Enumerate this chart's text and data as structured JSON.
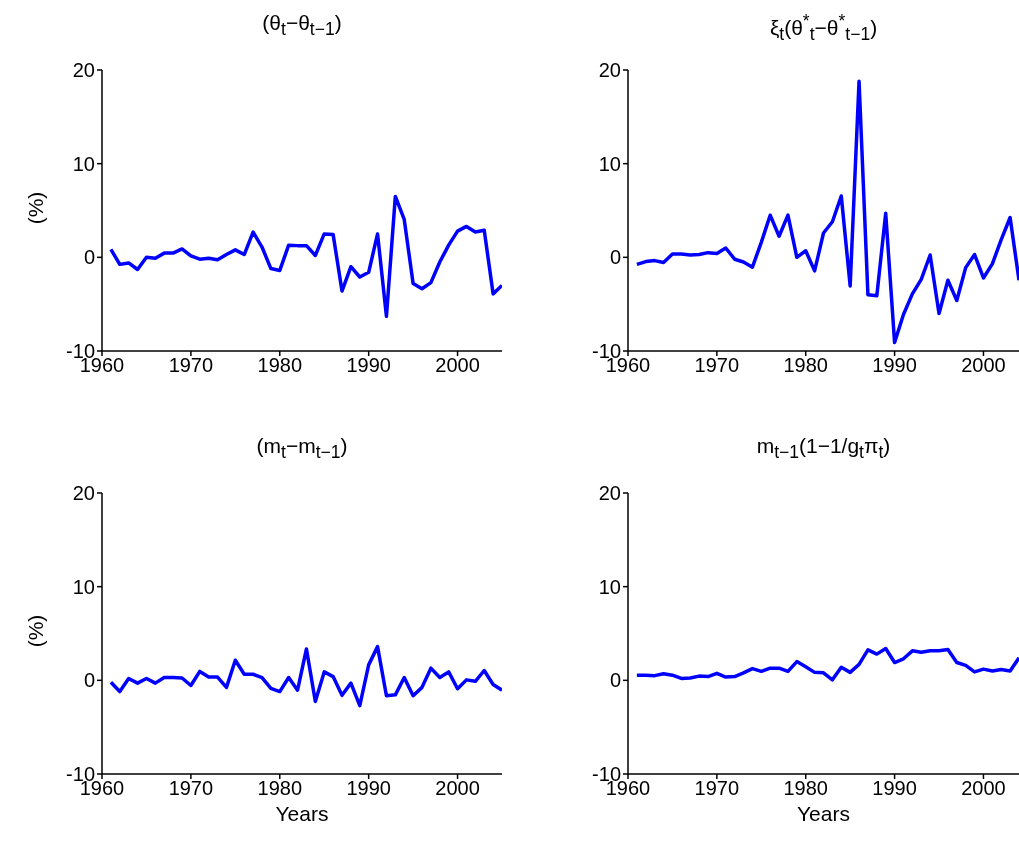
{
  "chart_data": [
    {
      "type": "line",
      "title": "(θ$_{t}$−θ$_{t−1}$)",
      "ylabel": "(%)",
      "color": "#0000ff",
      "xlim": [
        1960,
        2005
      ],
      "xticks": [
        1960,
        1970,
        1980,
        1990,
        2000
      ],
      "ylim": [
        -10,
        20
      ],
      "yticks": [
        -10,
        0,
        10,
        20
      ],
      "x": [
        1961,
        1962,
        1963,
        1964,
        1965,
        1966,
        1967,
        1968,
        1969,
        1970,
        1971,
        1972,
        1973,
        1974,
        1975,
        1976,
        1977,
        1978,
        1979,
        1980,
        1981,
        1982,
        1983,
        1984,
        1985,
        1986,
        1987,
        1988,
        1989,
        1990,
        1991,
        1992,
        1993,
        1994,
        1995,
        1996,
        1997,
        1998,
        1999,
        2000,
        2001,
        2002,
        2003,
        2004,
        2005
      ],
      "values": [
        0.85,
        -0.75,
        -0.6,
        -1.3,
        0,
        -0.1,
        0.45,
        0.45,
        0.9,
        0.15,
        -0.2,
        -0.1,
        -0.25,
        0.3,
        0.8,
        0.3,
        2.7,
        1.1,
        -1.2,
        -1.4,
        1.3,
        1.25,
        1.25,
        0.2,
        2.5,
        2.45,
        -3.6,
        -1.0,
        -2.1,
        -1.6,
        2.5,
        -6.3,
        6.5,
        4.05,
        -2.8,
        -3.35,
        -2.7,
        -0.5,
        1.3,
        2.8,
        3.3,
        2.7,
        2.9,
        -3.9,
        -3.0
      ]
    },
    {
      "type": "line",
      "title": "ξ$_{t}$(θ$^{*}$$_{t}$−θ$^{*}$$_{t−1}$)",
      "color": "#0000ff",
      "xlim": [
        1960,
        2004
      ],
      "xticks": [
        1960,
        1970,
        1980,
        1990,
        2000
      ],
      "ylim": [
        -10,
        20
      ],
      "yticks": [
        -10,
        0,
        10,
        20
      ],
      "x": [
        1961,
        1962,
        1963,
        1964,
        1965,
        1966,
        1967,
        1968,
        1969,
        1970,
        1971,
        1972,
        1973,
        1974,
        1975,
        1976,
        1977,
        1978,
        1979,
        1980,
        1981,
        1982,
        1983,
        1984,
        1985,
        1986,
        1987,
        1988,
        1989,
        1990,
        1991,
        1992,
        1993,
        1994,
        1995,
        1996,
        1997,
        1998,
        1999,
        2000,
        2001,
        2002,
        2003,
        2004
      ],
      "values": [
        -0.75,
        -0.45,
        -0.35,
        -0.55,
        0.35,
        0.35,
        0.25,
        0.3,
        0.5,
        0.4,
        1.0,
        -0.2,
        -0.5,
        -1.05,
        1.6,
        4.5,
        2.25,
        4.5,
        0,
        0.7,
        -1.45,
        2.6,
        3.8,
        6.55,
        -3.05,
        18.8,
        -4.0,
        -4.1,
        4.7,
        -9.1,
        -6.1,
        -3.9,
        -2.35,
        0.25,
        -6.0,
        -2.45,
        -4.6,
        -1.1,
        0.3,
        -2.2,
        -0.7,
        1.9,
        4.25,
        -2.45
      ]
    },
    {
      "type": "line",
      "title": "(m$_{t}$−m$_{t−1}$)",
      "ylabel": "(%)",
      "xlabel": "Years",
      "color": "#0000ff",
      "xlim": [
        1960,
        2005
      ],
      "xticks": [
        1960,
        1970,
        1980,
        1990,
        2000
      ],
      "ylim": [
        -10,
        20
      ],
      "yticks": [
        -10,
        0,
        10,
        20
      ],
      "x": [
        1961,
        1962,
        1963,
        1964,
        1965,
        1966,
        1967,
        1968,
        1969,
        1970,
        1971,
        1972,
        1973,
        1974,
        1975,
        1976,
        1977,
        1978,
        1979,
        1980,
        1981,
        1982,
        1983,
        1984,
        1985,
        1986,
        1987,
        1988,
        1989,
        1990,
        1991,
        1992,
        1993,
        1994,
        1995,
        1996,
        1997,
        1998,
        1999,
        2000,
        2001,
        2002,
        2003,
        2004,
        2005
      ],
      "values": [
        -0.2,
        -1.2,
        0.2,
        -0.3,
        0.2,
        -0.3,
        0.3,
        0.3,
        0.25,
        -0.55,
        0.95,
        0.35,
        0.35,
        -0.75,
        2.15,
        0.65,
        0.65,
        0.3,
        -0.85,
        -1.2,
        0.3,
        -1.05,
        3.35,
        -2.25,
        0.9,
        0.4,
        -1.6,
        -0.3,
        -2.7,
        1.65,
        3.6,
        -1.65,
        -1.55,
        0.3,
        -1.65,
        -0.75,
        1.3,
        0.3,
        0.9,
        -0.9,
        0.05,
        -0.1,
        1.05,
        -0.45,
        -1.05
      ]
    },
    {
      "type": "line",
      "title": "m$_{t−1}$(1−1/g$_{t}$π$_{t}$)",
      "xlabel": "Years",
      "color": "#0000ff",
      "xlim": [
        1960,
        2004
      ],
      "xticks": [
        1960,
        1970,
        1980,
        1990,
        2000
      ],
      "ylim": [
        -10,
        20
      ],
      "yticks": [
        -10,
        0,
        10,
        20
      ],
      "x": [
        1961,
        1962,
        1963,
        1964,
        1965,
        1966,
        1967,
        1968,
        1969,
        1970,
        1971,
        1972,
        1973,
        1974,
        1975,
        1976,
        1977,
        1978,
        1979,
        1980,
        1981,
        1982,
        1983,
        1984,
        1985,
        1986,
        1987,
        1988,
        1989,
        1990,
        1991,
        1992,
        1993,
        1994,
        1995,
        1996,
        1997,
        1998,
        1999,
        2000,
        2001,
        2002,
        2003,
        2004
      ],
      "values": [
        0.55,
        0.55,
        0.5,
        0.7,
        0.55,
        0.2,
        0.25,
        0.45,
        0.4,
        0.75,
        0.35,
        0.4,
        0.8,
        1.25,
        0.95,
        1.3,
        1.3,
        0.95,
        2.0,
        1.45,
        0.85,
        0.8,
        0.05,
        1.4,
        0.85,
        1.7,
        3.25,
        2.8,
        3.4,
        1.9,
        2.3,
        3.15,
        3.0,
        3.15,
        3.15,
        3.3,
        1.9,
        1.6,
        0.9,
        1.2,
        1.0,
        1.15,
        1.0,
        2.4
      ]
    }
  ]
}
